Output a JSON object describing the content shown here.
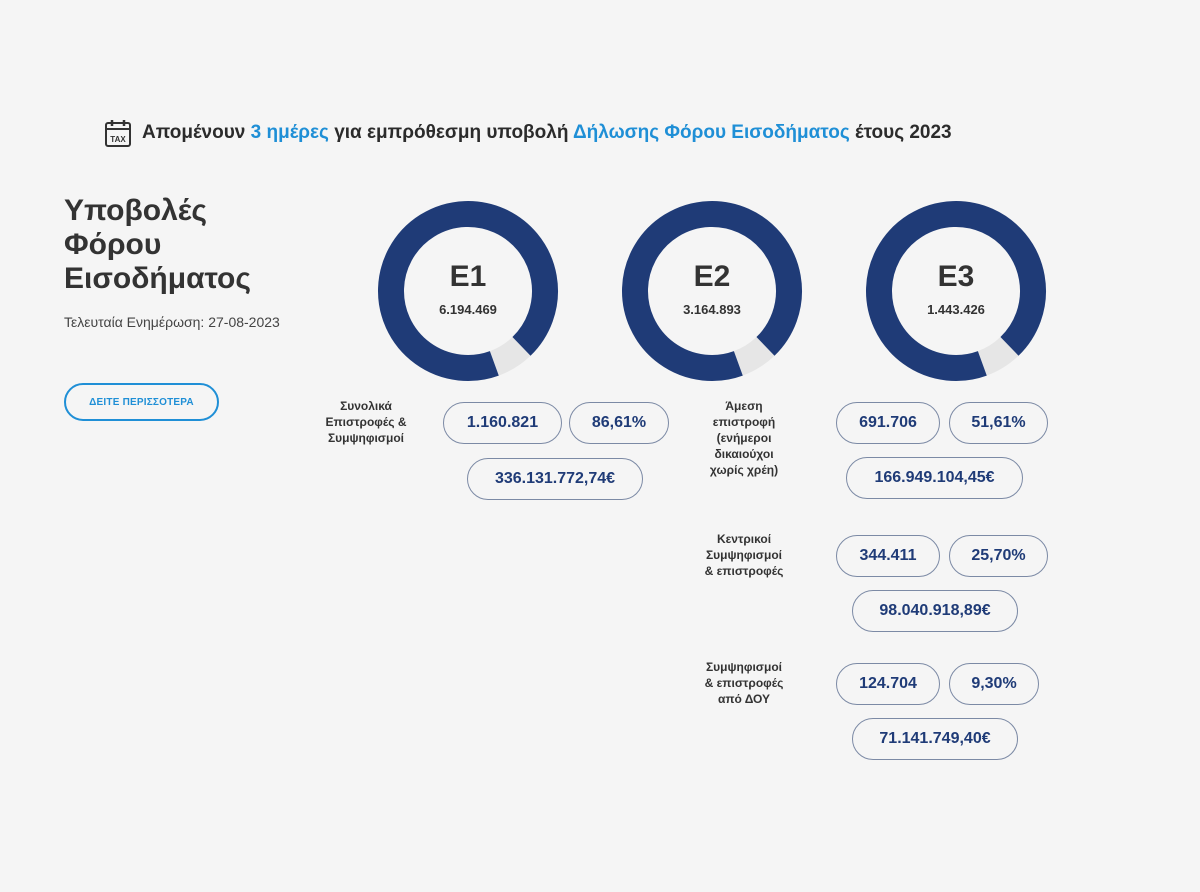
{
  "banner": {
    "part1": "Απομένουν ",
    "days": "3 ημέρες",
    "part2": " για εμπρόθεσμη υποβολή ",
    "declaration": "Δήλωσης Φόρου Εισοδήματος",
    "part3": " έτους 2023",
    "icon": "tax-calendar-icon",
    "icon_text": "TAX"
  },
  "title_lines": [
    "Υποβολές",
    "Φόρου",
    "Εισοδήματος"
  ],
  "updated": "Τελευταία Ενημέρωση: 27-08-2023",
  "more_button": "ΔΕΙΤΕ ΠΕΡΙΣΣΟΤΕΡΑ",
  "colors": {
    "accent": "#1f8fd6",
    "gauge": "#1f3b77",
    "pill_text": "#1f3b77",
    "pill_border": "#7c8aa5"
  },
  "gauges": [
    {
      "label": "Ε1",
      "value": "6.194.469"
    },
    {
      "label": "Ε2",
      "value": "3.164.893"
    },
    {
      "label": "Ε3",
      "value": "1.443.426"
    }
  ],
  "summary": {
    "label": [
      "Συνολικά",
      "Επιστροφές &",
      "Συμψηφισμοί"
    ],
    "count": "1.160.821",
    "percent": "86,61%",
    "amount": "336.131.772,74€"
  },
  "breakdown": [
    {
      "label": [
        "Άμεση",
        "επιστροφή",
        "(ενήμεροι",
        "δικαιούχοι",
        "χωρίς χρέη)"
      ],
      "count": "691.706",
      "percent": "51,61%",
      "amount": "166.949.104,45€"
    },
    {
      "label": [
        "Κεντρικοί",
        "Συμψηφισμοί",
        "& επιστροφές"
      ],
      "count": "344.411",
      "percent": "25,70%",
      "amount": "98.040.918,89€"
    },
    {
      "label": [
        "Συμψηφισμοί",
        "& επιστροφές",
        "από ΔΟΥ"
      ],
      "count": "124.704",
      "percent": "9,30%",
      "amount": "71.141.749,40€"
    }
  ]
}
